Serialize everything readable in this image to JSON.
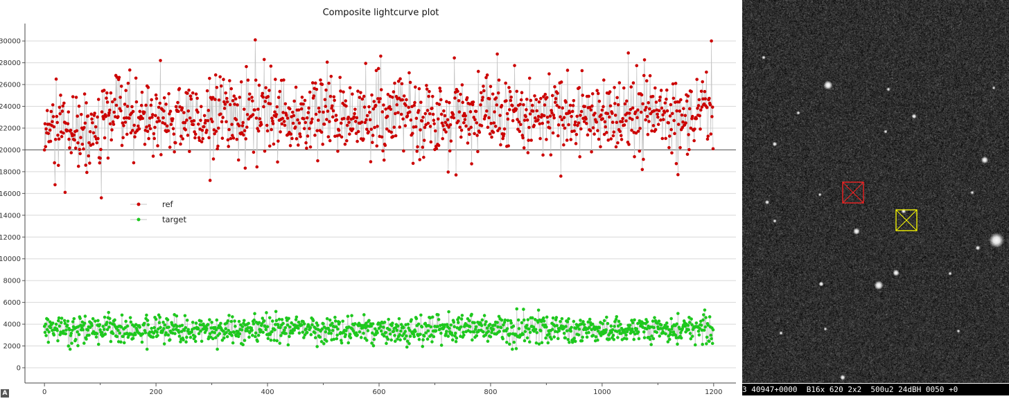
{
  "chart_data": {
    "type": "line",
    "title": "Composite lightcurve plot",
    "xlabel": "",
    "ylabel": "",
    "xlim": [
      -35,
      1240
    ],
    "ylim": [
      -1400,
      31600
    ],
    "x_ticks": [
      0,
      200,
      400,
      600,
      800,
      1000,
      1200
    ],
    "y_ticks": [
      0,
      2000,
      4000,
      6000,
      8000,
      10000,
      12000,
      14000,
      16000,
      18000,
      20000,
      22000,
      24000,
      26000,
      28000,
      30000
    ],
    "reference_line_y": 20000,
    "grid": "horizontal",
    "legend_position": "center-left",
    "n_points": 1200,
    "series": [
      {
        "name": "ref",
        "color": "#cc0000",
        "mean": 23000,
        "std": 1800,
        "min": 15500,
        "max": 30100,
        "notable_points": [
          {
            "x": 0,
            "y": 20000
          },
          {
            "x": 19,
            "y": 16800
          },
          {
            "x": 21,
            "y": 26500
          },
          {
            "x": 37,
            "y": 16100
          },
          {
            "x": 102,
            "y": 15600
          },
          {
            "x": 297,
            "y": 17200
          },
          {
            "x": 378,
            "y": 30100
          },
          {
            "x": 394,
            "y": 28300
          },
          {
            "x": 738,
            "y": 17700
          },
          {
            "x": 812,
            "y": 28800
          },
          {
            "x": 1047,
            "y": 28900
          },
          {
            "x": 1196,
            "y": 30000
          }
        ]
      },
      {
        "name": "target",
        "color": "#1ec81e",
        "mean": 3500,
        "std": 650,
        "min": 1700,
        "max": 5400,
        "notable_points": [
          {
            "x": 0,
            "y": 3800
          },
          {
            "x": 46,
            "y": 1700
          },
          {
            "x": 847,
            "y": 5400
          },
          {
            "x": 1184,
            "y": 5300
          }
        ]
      }
    ]
  },
  "image_panel": {
    "status_text": "3 40947+0000  B16x 620 2x2  500u2 24dBH 0050 +0",
    "markers": [
      {
        "name": "target",
        "color": "#ff2020"
      },
      {
        "name": "ref",
        "color": "#ffff00"
      }
    ]
  },
  "ui": {
    "corner_badge": "A"
  }
}
